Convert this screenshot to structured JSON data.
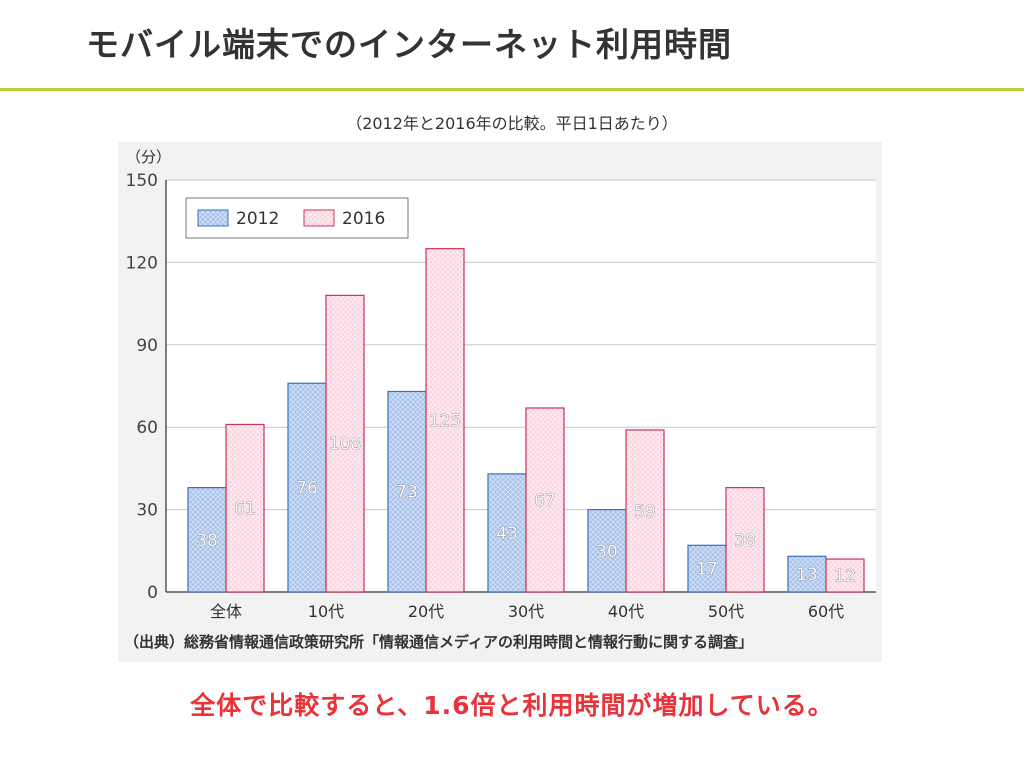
{
  "page": {
    "title": "モバイル端末でのインターネット利用時間",
    "footer_note": "全体で比較すると、1.6倍と利用時間が増加している。",
    "accent_color": "#b5cf3e",
    "note_color": "#e8333a"
  },
  "chart_data": {
    "type": "bar",
    "title": "（2012年と2016年の比較。平日1日あたり）",
    "ylabel": "（分）",
    "xlabel": "",
    "ylim": [
      0,
      150
    ],
    "yticks": [
      0,
      30,
      60,
      90,
      120,
      150
    ],
    "grid": true,
    "legend_position": "top-left",
    "categories": [
      "全体",
      "10代",
      "20代",
      "30代",
      "40代",
      "50代",
      "60代"
    ],
    "series": [
      {
        "name": "2012",
        "values": [
          38,
          76,
          73,
          43,
          30,
          17,
          13
        ],
        "color": "#9bb9e8",
        "stroke": "#3a6fc0"
      },
      {
        "name": "2016",
        "values": [
          61,
          108,
          125,
          67,
          59,
          38,
          12
        ],
        "color": "#f6c6d4",
        "stroke": "#cc3355"
      }
    ],
    "source": "（出典）総務省情報通信政策研究所「情報通信メディアの利用時間と情報行動に関する調査」"
  }
}
